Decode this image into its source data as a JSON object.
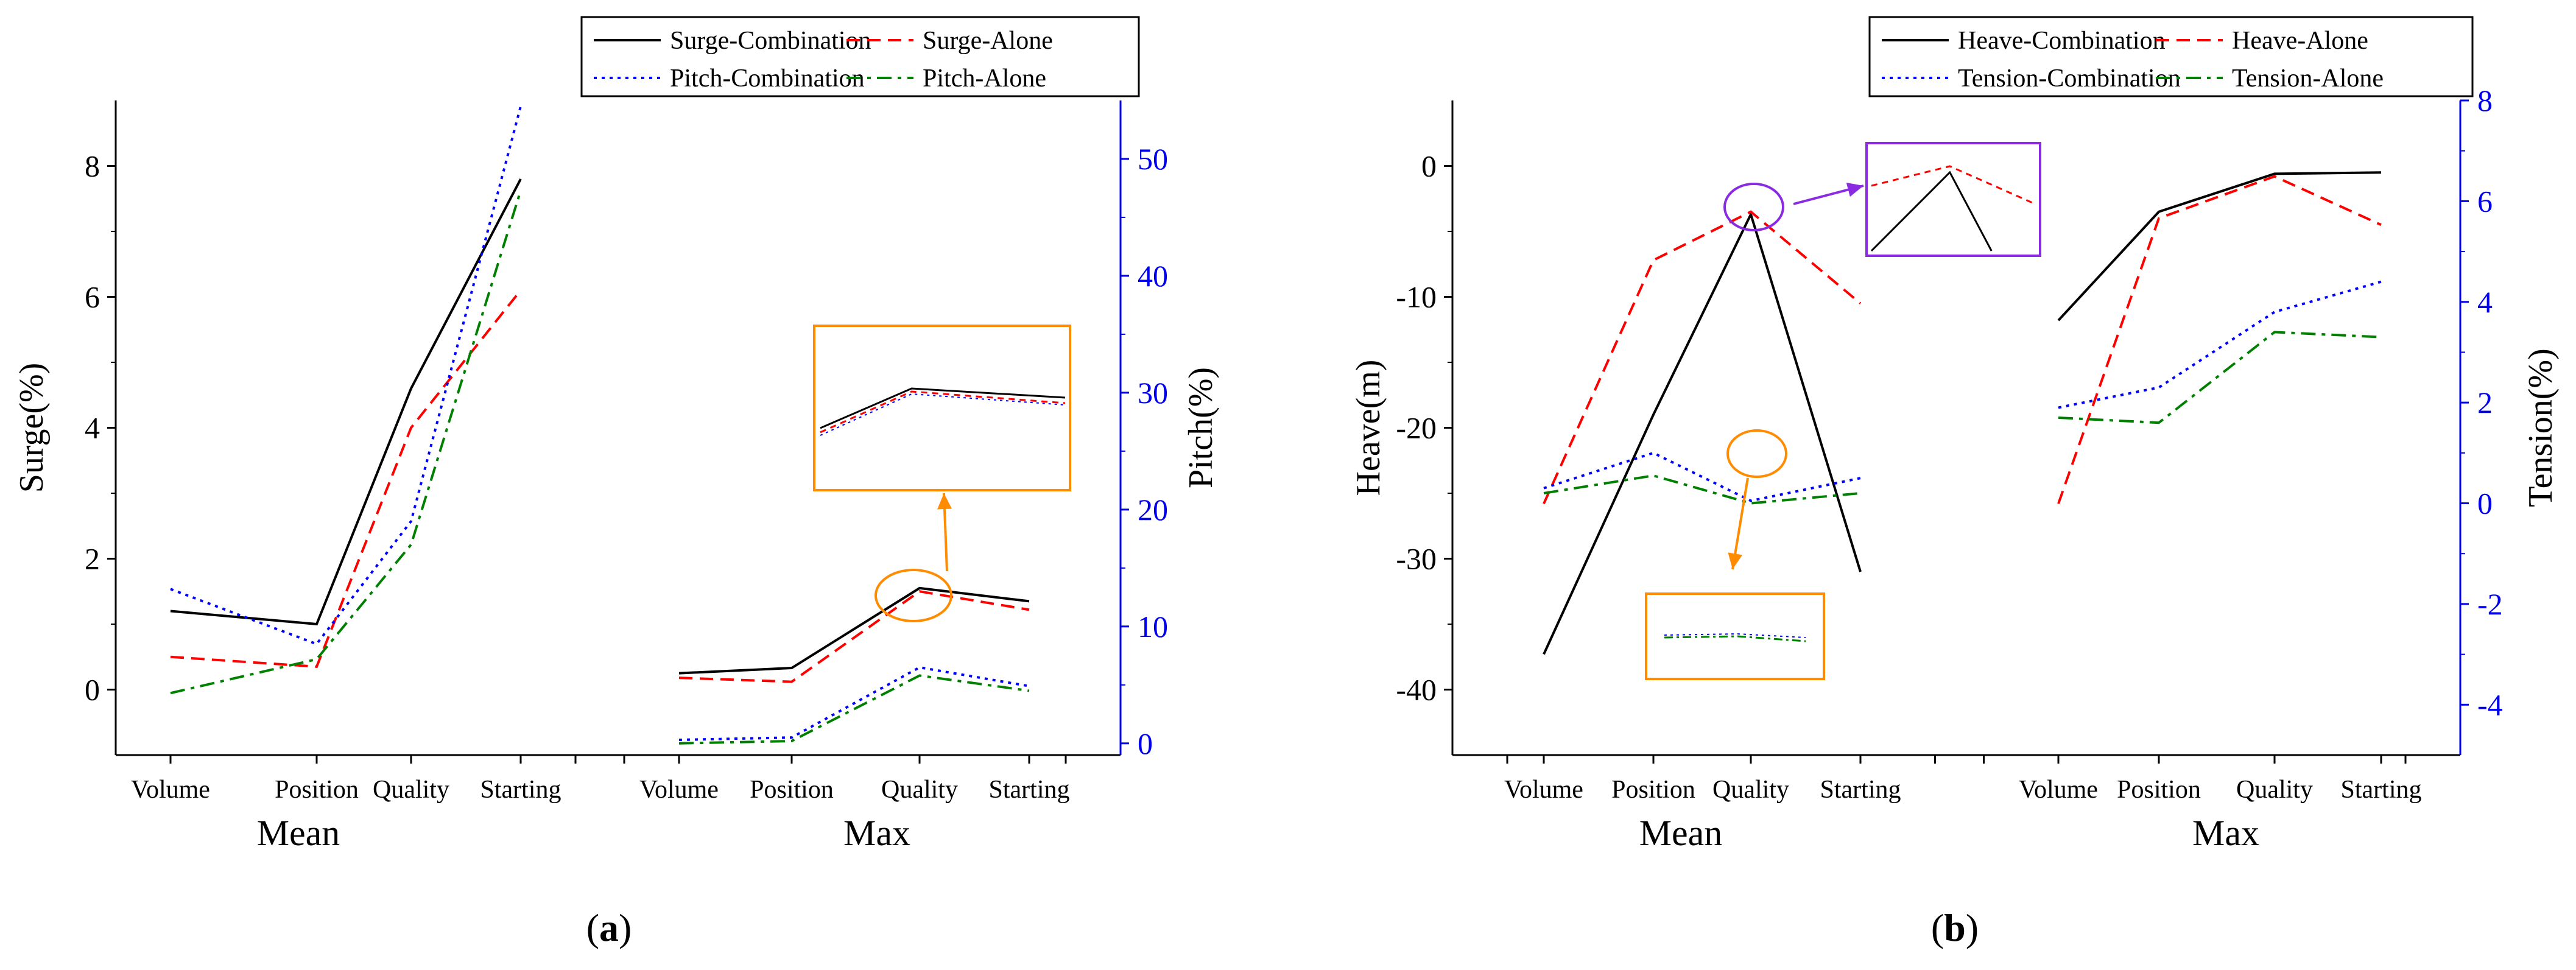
{
  "chart_data": [
    {
      "panel_label": "a",
      "type": "line",
      "groups": [
        "Mean",
        "Max"
      ],
      "categories": [
        "Volume",
        "Position",
        "Quality",
        "Starting"
      ],
      "ylabel": "Surge(%)",
      "y2label": "Pitch(%)",
      "ylim": [
        -1,
        9
      ],
      "y2lim": [
        -1,
        55
      ],
      "yticks": [
        0,
        2,
        4,
        6,
        8
      ],
      "y2ticks": [
        0,
        10,
        20,
        30,
        40,
        50
      ],
      "legend": [
        "Surge-Combination",
        "Surge-Alone",
        "Pitch-Combination",
        "Pitch-Alone"
      ],
      "legend_position": "top",
      "series": [
        {
          "name": "Surge-Combination",
          "axis": "left",
          "color": "#000000",
          "dash": "solid",
          "mean": [
            1.2,
            1.0,
            4.6,
            7.8
          ],
          "max": [
            0.25,
            0.33,
            1.55,
            1.35
          ]
        },
        {
          "name": "Surge-Alone",
          "axis": "left",
          "color": "#ff0000",
          "dash": "dash",
          "mean": [
            0.5,
            0.35,
            4.0,
            6.1
          ],
          "max": [
            0.18,
            0.12,
            1.5,
            1.22
          ]
        },
        {
          "name": "Pitch-Combination",
          "axis": "right",
          "color": "#0000ff",
          "dash": "dot",
          "mean": [
            13.2,
            8.5,
            19.0,
            54.5
          ],
          "max": [
            0.3,
            0.5,
            6.5,
            4.9
          ]
        },
        {
          "name": "Pitch-Alone",
          "axis": "right",
          "color": "#008000",
          "dash": "dashdot",
          "mean": [
            4.3,
            7.2,
            17.0,
            47.3
          ],
          "max": [
            0.0,
            0.2,
            5.8,
            4.5
          ]
        }
      ],
      "annotation": "zoom inset of Max Quality point"
    },
    {
      "panel_label": "b",
      "type": "line",
      "groups": [
        "Mean",
        "Max"
      ],
      "categories": [
        "Volume",
        "Position",
        "Quality",
        "Starting"
      ],
      "ylabel": "Heave(m)",
      "y2label": "Tension(%)",
      "ylim": [
        -45,
        5
      ],
      "y2lim": [
        -5,
        8
      ],
      "yticks": [
        -40,
        -30,
        -20,
        -10,
        0
      ],
      "y2ticks": [
        -4,
        -2,
        0,
        2,
        4,
        6,
        8
      ],
      "legend": [
        "Heave-Combination",
        "Heave-Alone",
        "Tension-Combination",
        "Tension-Alone"
      ],
      "legend_position": "top",
      "series": [
        {
          "name": "Heave-Combination",
          "axis": "left",
          "color": "#000000",
          "dash": "solid",
          "mean": [
            -37.3,
            -19.0,
            -3.7,
            -31.0
          ],
          "max": [
            -11.8,
            -3.5,
            -0.6,
            -0.5
          ]
        },
        {
          "name": "Heave-Alone",
          "axis": "left",
          "color": "#ff0000",
          "dash": "dash",
          "mean": [
            -25.8,
            -7.2,
            -3.5,
            -10.5
          ],
          "max": [
            -25.8,
            -4.0,
            -0.8,
            -4.5
          ]
        },
        {
          "name": "Tension-Combination",
          "axis": "right",
          "color": "#0000ff",
          "dash": "dot",
          "mean": [
            0.3,
            1.0,
            0.05,
            0.5
          ],
          "max": [
            1.9,
            2.3,
            3.8,
            4.4
          ]
        },
        {
          "name": "Tension-Alone",
          "axis": "right",
          "color": "#008000",
          "dash": "dashdot",
          "mean": [
            0.2,
            0.55,
            0.0,
            0.2
          ],
          "max": [
            1.7,
            1.6,
            3.4,
            3.3
          ]
        }
      ],
      "annotation": "zoom insets of Mean Quality points"
    }
  ]
}
